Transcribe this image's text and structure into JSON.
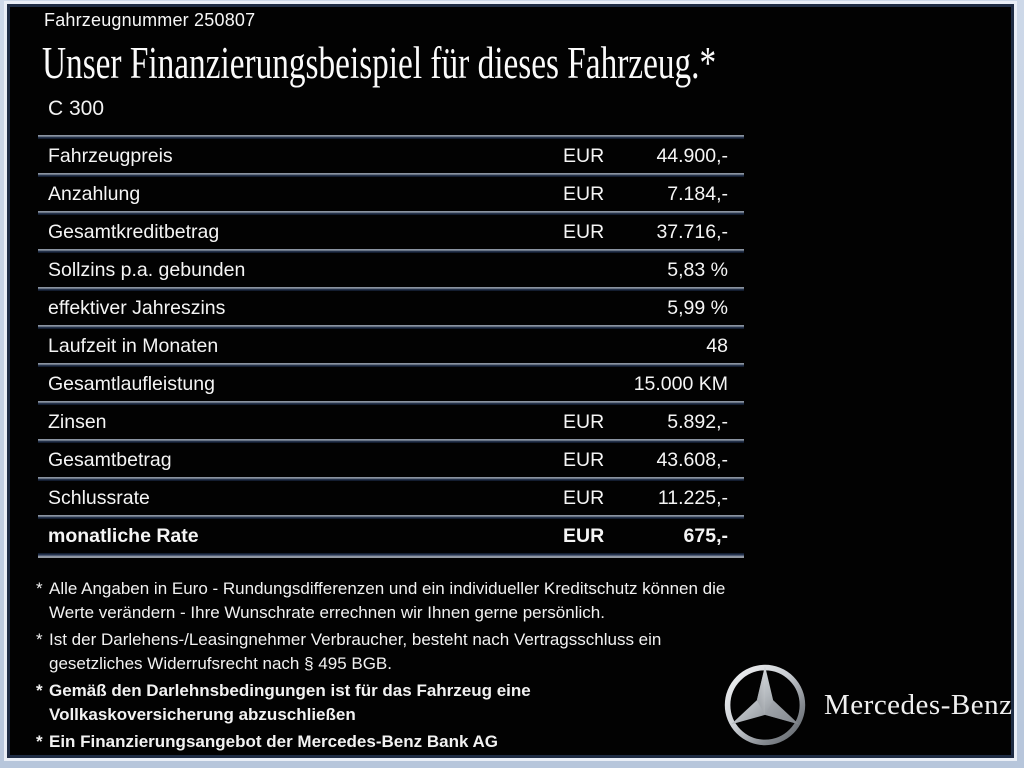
{
  "page": {
    "vehicle_number": "Fahrzeugnummer 250807",
    "title": "Unser Finanzierungsbeispiel für dieses Fahrzeug.*",
    "model": "C 300"
  },
  "table": {
    "rows": [
      {
        "label": "Fahrzeugpreis",
        "currency": "EUR",
        "value": "44.900,-",
        "bold": false
      },
      {
        "label": "Anzahlung",
        "currency": "EUR",
        "value": "7.184,-",
        "bold": false
      },
      {
        "label": "Gesamtkreditbetrag",
        "currency": "EUR",
        "value": "37.716,-",
        "bold": false
      },
      {
        "label": "Sollzins p.a. gebunden",
        "currency": "",
        "value": "5,83 %",
        "bold": false
      },
      {
        "label": "effektiver Jahreszins",
        "currency": "",
        "value": "5,99 %",
        "bold": false
      },
      {
        "label": "Laufzeit in Monaten",
        "currency": "",
        "value": "48",
        "bold": false
      },
      {
        "label": "Gesamtlaufleistung",
        "currency": "",
        "value": "15.000 KM",
        "bold": false
      },
      {
        "label": "Zinsen",
        "currency": "EUR",
        "value": "5.892,-",
        "bold": false
      },
      {
        "label": "Gesamtbetrag",
        "currency": "EUR",
        "value": "43.608,-",
        "bold": false
      },
      {
        "label": "Schlussrate",
        "currency": "EUR",
        "value": "11.225,-",
        "bold": false
      },
      {
        "label": "monatliche Rate",
        "currency": "EUR",
        "value": "675,-",
        "bold": true
      }
    ]
  },
  "footnotes": [
    {
      "marker": "*",
      "bold": false,
      "lines": [
        "Alle Angaben in Euro - Rundungsdifferenzen und ein individueller Kreditschutz können die",
        "Werte verändern - Ihre Wunschrate errechnen wir Ihnen gerne persönlich."
      ]
    },
    {
      "marker": "*",
      "bold": false,
      "lines": [
        "Ist der Darlehens-/Leasingnehmer Verbraucher, besteht nach Vertragsschluss ein",
        "gesetzliches Widerrufsrecht nach § 495 BGB."
      ]
    },
    {
      "marker": "*",
      "bold": true,
      "lines": [
        "Gemäß den Darlehnsbedingungen ist für das Fahrzeug eine",
        "Vollkaskoversicherung abzuschließen"
      ]
    },
    {
      "marker": "*",
      "bold": true,
      "lines": [
        "Ein Finanzierungsangebot der Mercedes-Benz Bank AG"
      ]
    }
  ],
  "brand": {
    "logo": "mercedes-star-icon",
    "wordmark": "Mercedes-Benz"
  },
  "colors": {
    "panel_background": "#020202",
    "frame": "#c2cfe2",
    "panel_border": "#1e2c44",
    "text": "#f5f5f5",
    "divider_light": "#8a93a0",
    "divider_dark": "#0a1322"
  }
}
